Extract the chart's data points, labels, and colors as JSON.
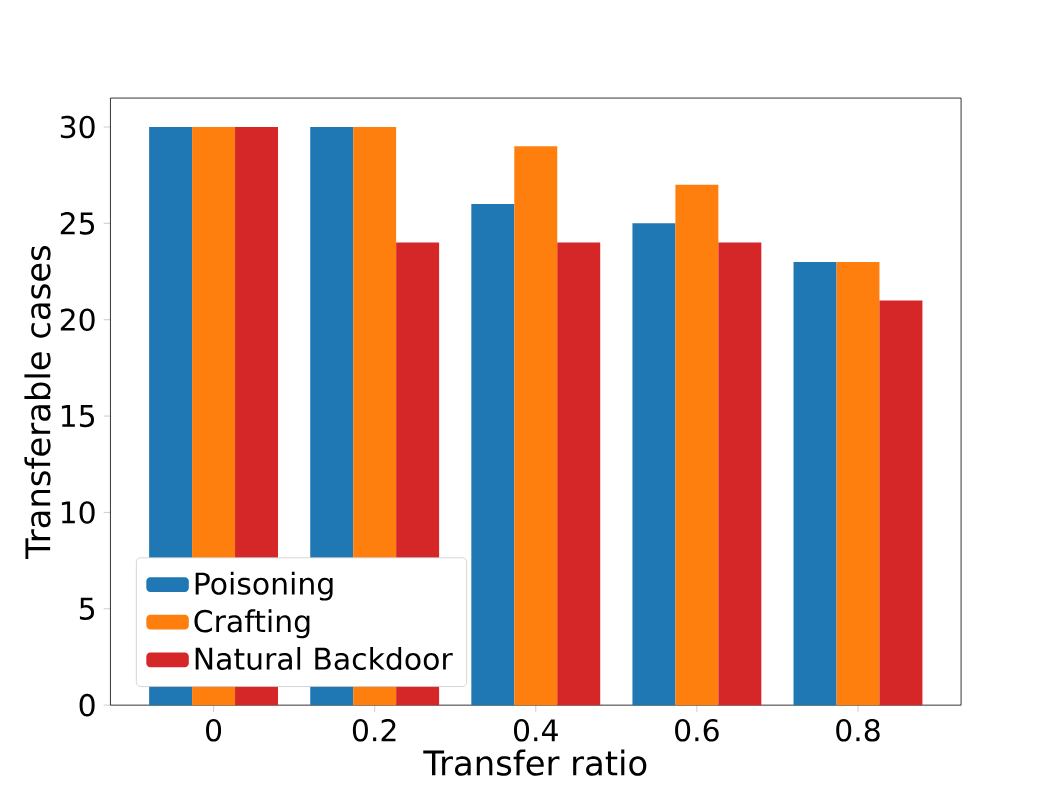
{
  "chart_data": {
    "type": "bar",
    "xlabel": "Transfer ratio",
    "ylabel": "Transferable cases",
    "categories": [
      "0",
      "0.2",
      "0.4",
      "0.6",
      "0.8"
    ],
    "series": [
      {
        "name": "Poisoning",
        "color": "#1f77b4",
        "values": [
          30,
          30,
          26,
          25,
          23
        ]
      },
      {
        "name": "Crafting",
        "color": "#ff7f0e",
        "values": [
          30,
          30,
          29,
          27,
          23
        ]
      },
      {
        "name": "Natural Backdoor",
        "color": "#d62728",
        "values": [
          30,
          24,
          24,
          24,
          21
        ]
      }
    ],
    "ylim": [
      0,
      31.5
    ],
    "yticks": [
      0,
      5,
      10,
      15,
      20,
      25,
      30
    ],
    "grid": false,
    "legend": "bottom left"
  }
}
